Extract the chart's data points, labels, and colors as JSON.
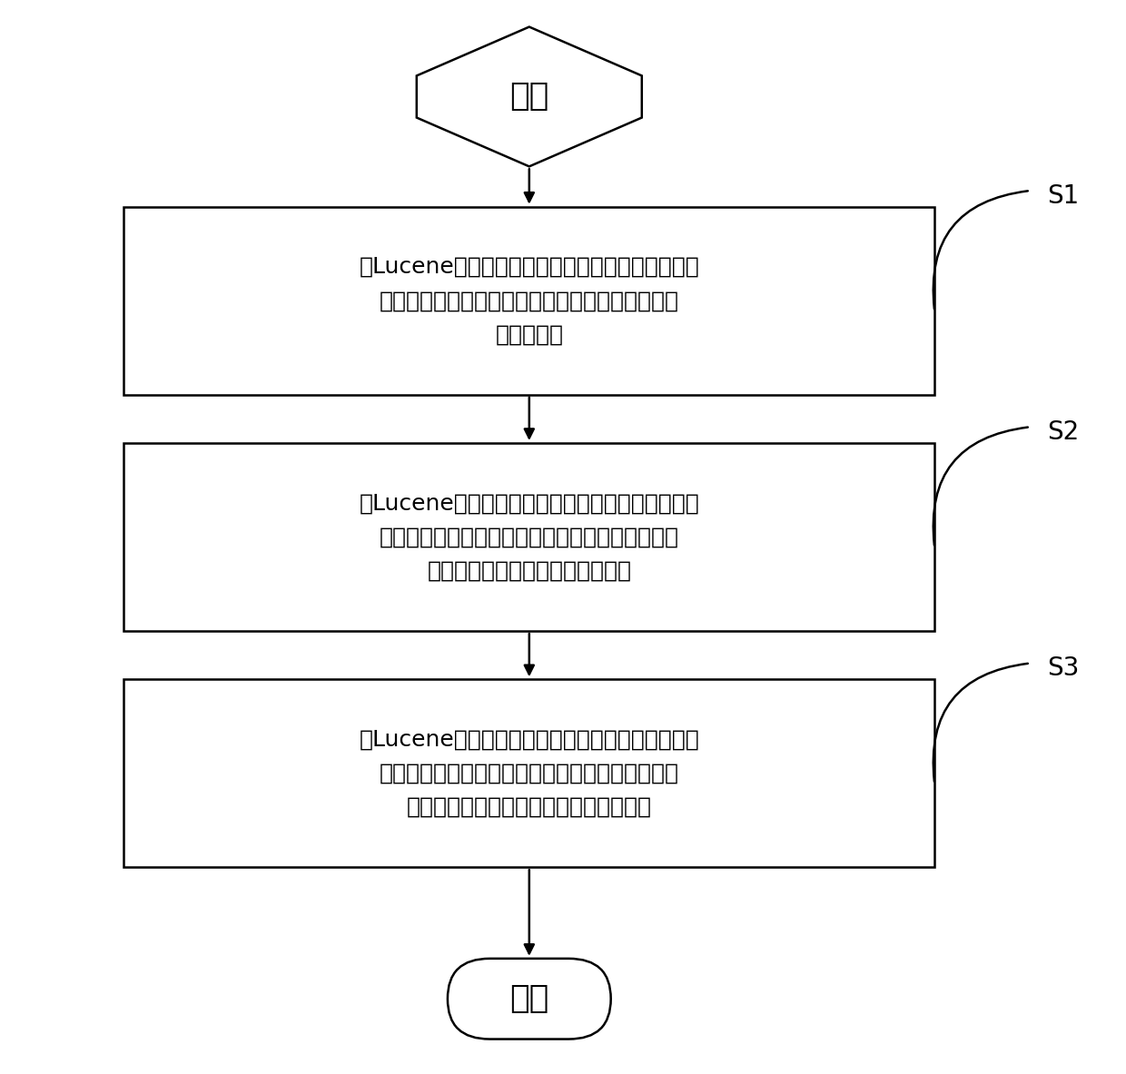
{
  "bg_color": "#ffffff",
  "shape_edge_color": "#000000",
  "shape_fill_color": "#ffffff",
  "arrow_color": "#000000",
  "font_color": "#000000",
  "start_label": "开始",
  "end_label": "结束",
  "step_labels": [
    "当Lucene处于启动状态时，在堆外内存中为索引数\n据分配指定大小的内存并放入内存池后，对堆外缓\n存索引预热",
    "当Lucene处于索引状态时，判断堆外内存索引容量\n大小，若所述索引容量达到需求值，则在堆外内存\n索引中打开输出流以写入索引数据",
    "当Lucene处于搜索状态时，判断堆外内存索引中是\n否存在当前需要读取的索引数据，若存在，则在堆\n外内存索引中打开输入流以读取索引数据"
  ],
  "step_ids": [
    "S1",
    "S2",
    "S3"
  ],
  "figsize": [
    12.4,
    11.83
  ],
  "dpi": 100
}
